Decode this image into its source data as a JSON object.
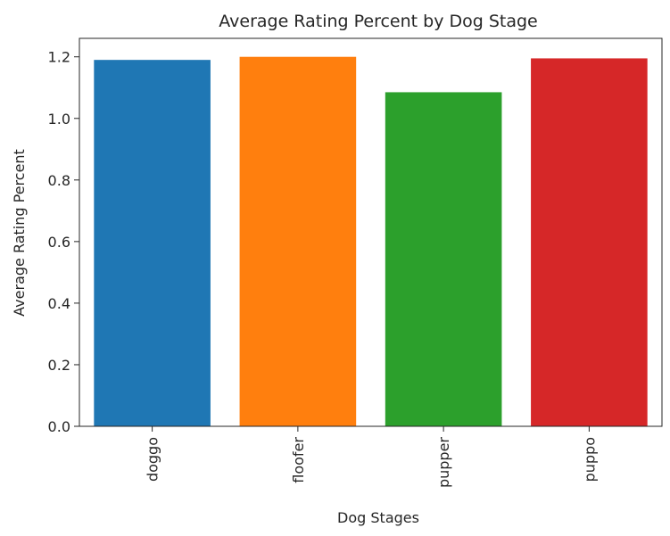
{
  "chart_data": {
    "type": "bar",
    "title": "Average Rating Percent by Dog Stage",
    "xlabel": "Dog Stages",
    "ylabel": "Average Rating Percent",
    "categories": [
      "doggo",
      "floofer",
      "pupper",
      "puppo"
    ],
    "values": [
      1.19,
      1.2,
      1.085,
      1.195
    ],
    "ylim": [
      0,
      1.26
    ],
    "yticks": [
      0.0,
      0.2,
      0.4,
      0.6,
      0.8,
      1.0,
      1.2
    ],
    "ytick_labels": [
      "0.0",
      "0.2",
      "0.4",
      "0.6",
      "0.8",
      "1.0",
      "1.2"
    ],
    "colors": [
      "#1f77b4",
      "#ff7f0e",
      "#2ca02c",
      "#d62728"
    ],
    "grid": false,
    "legend": "none"
  }
}
